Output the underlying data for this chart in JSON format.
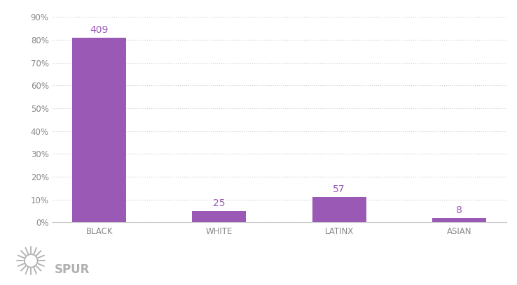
{
  "categories": [
    "BLACK",
    "WHITE",
    "LATINX",
    "ASIAN"
  ],
  "values": [
    81,
    5,
    11,
    2
  ],
  "counts": [
    409,
    25,
    57,
    8
  ],
  "bar_color": "#9b59b6",
  "annotation_color": "#9b59b6",
  "bg_color": "#ffffff",
  "grid_color": "#cccccc",
  "tick_color": "#888888",
  "label_color": "#888888",
  "ylim": [
    0,
    90
  ],
  "yticks": [
    0,
    10,
    20,
    30,
    40,
    50,
    60,
    70,
    80,
    90
  ],
  "ytick_labels": [
    "0%",
    "10%",
    "20%",
    "30%",
    "40%",
    "50%",
    "60%",
    "70%",
    "80%",
    "90%"
  ],
  "bar_width": 0.45,
  "figsize": [
    7.38,
    4.08
  ],
  "dpi": 100,
  "spur_text": "SPUR",
  "spur_color": "#b0b0b0"
}
